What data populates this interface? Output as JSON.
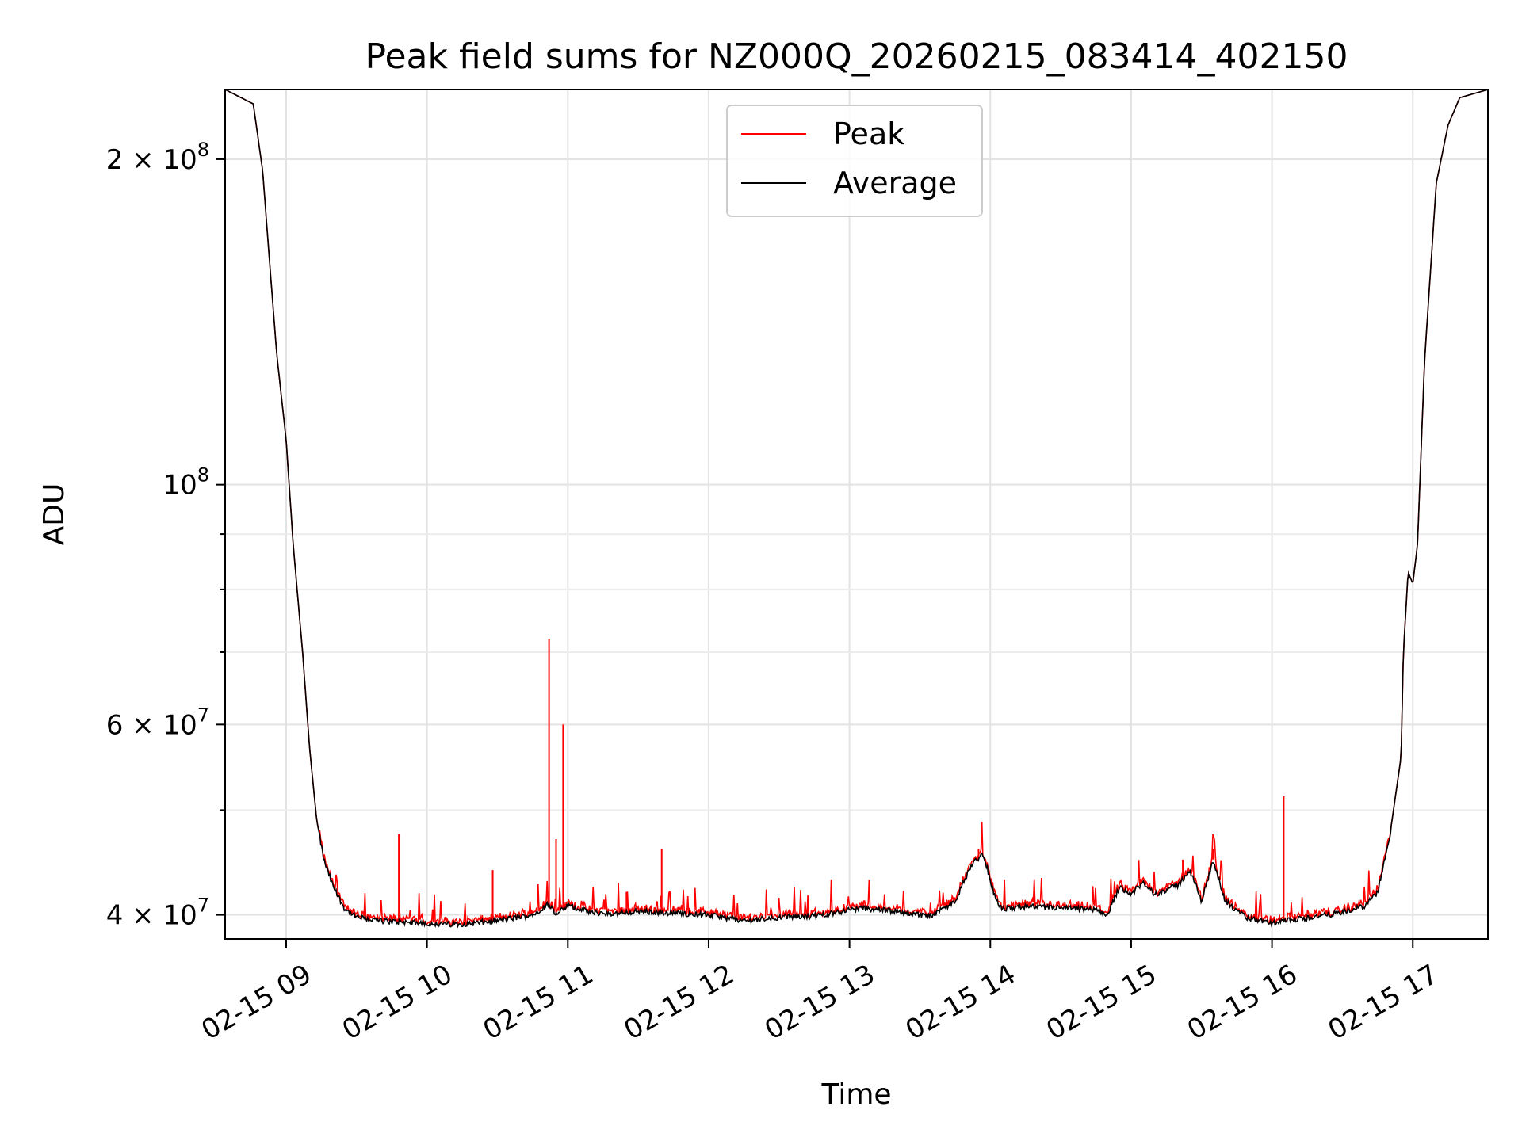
{
  "chart_data": {
    "type": "line",
    "title": "Peak field sums for NZ000Q_20260215_083414_402150",
    "xlabel": "Time",
    "ylabel": "ADU",
    "y_scale": "log",
    "grid": true,
    "legend_position": "upper-center",
    "x_range": [
      "2026-02-15 08:34",
      "2026-02-15 17:32"
    ],
    "ylim": [
      38000000,
      232000000
    ],
    "x_tick_labels": [
      "02-15 09",
      "02-15 10",
      "02-15 11",
      "02-15 12",
      "02-15 13",
      "02-15 14",
      "02-15 15",
      "02-15 16",
      "02-15 17"
    ],
    "y_tick_labels": [
      {
        "value": 40000000,
        "label": "4 × 10^7"
      },
      {
        "value": 60000000,
        "label": "6 × 10^7"
      },
      {
        "value": 100000000,
        "label": "10^8"
      },
      {
        "value": 200000000,
        "label": "2 × 10^8"
      }
    ],
    "y_minor_ticks": [
      50000000,
      70000000,
      80000000,
      90000000
    ],
    "series": [
      {
        "name": "Average",
        "color": "#000000",
        "x": [
          "2026-02-15 08:34",
          "2026-02-15 08:46",
          "2026-02-15 08:50",
          "2026-02-15 08:53",
          "2026-02-15 08:56",
          "2026-02-15 09:00",
          "2026-02-15 09:03",
          "2026-02-15 09:07",
          "2026-02-15 09:10",
          "2026-02-15 09:13",
          "2026-02-15 09:16",
          "2026-02-15 09:20",
          "2026-02-15 09:25",
          "2026-02-15 09:30",
          "2026-02-15 09:40",
          "2026-02-15 09:50",
          "2026-02-15 10:00",
          "2026-02-15 10:10",
          "2026-02-15 10:20",
          "2026-02-15 10:30",
          "2026-02-15 10:45",
          "2026-02-15 10:52",
          "2026-02-15 10:55",
          "2026-02-15 11:00",
          "2026-02-15 11:10",
          "2026-02-15 11:20",
          "2026-02-15 11:30",
          "2026-02-15 11:40",
          "2026-02-15 12:00",
          "2026-02-15 12:15",
          "2026-02-15 12:30",
          "2026-02-15 12:45",
          "2026-02-15 13:05",
          "2026-02-15 13:20",
          "2026-02-15 13:35",
          "2026-02-15 13:45",
          "2026-02-15 13:52",
          "2026-02-15 13:57",
          "2026-02-15 14:02",
          "2026-02-15 14:05",
          "2026-02-15 14:15",
          "2026-02-15 14:30",
          "2026-02-15 14:45",
          "2026-02-15 14:50",
          "2026-02-15 14:55",
          "2026-02-15 15:00",
          "2026-02-15 15:05",
          "2026-02-15 15:10",
          "2026-02-15 15:15",
          "2026-02-15 15:20",
          "2026-02-15 15:25",
          "2026-02-15 15:30",
          "2026-02-15 15:35",
          "2026-02-15 15:40",
          "2026-02-15 15:45",
          "2026-02-15 15:50",
          "2026-02-15 16:00",
          "2026-02-15 16:10",
          "2026-02-15 16:20",
          "2026-02-15 16:30",
          "2026-02-15 16:40",
          "2026-02-15 16:45",
          "2026-02-15 16:50",
          "2026-02-15 16:55",
          "2026-02-15 16:56",
          "2026-02-15 16:58",
          "2026-02-15 17:00",
          "2026-02-15 17:02",
          "2026-02-15 17:05",
          "2026-02-15 17:10",
          "2026-02-15 17:15",
          "2026-02-15 17:20",
          "2026-02-15 17:32"
        ],
        "y": [
          232000000,
          225000000,
          195000000,
          160000000,
          132000000,
          110000000,
          88000000,
          70000000,
          57000000,
          49000000,
          45000000,
          42500000,
          40500000,
          39800000,
          39500000,
          39400000,
          39300000,
          39200000,
          39300000,
          39500000,
          40000000,
          41000000,
          40000000,
          40800000,
          40200000,
          40100000,
          40300000,
          40200000,
          40000000,
          39500000,
          39800000,
          39900000,
          40600000,
          40300000,
          39900000,
          41200000,
          44500000,
          45600000,
          41500000,
          40500000,
          40700000,
          40600000,
          40400000,
          40000000,
          42500000,
          41800000,
          42800000,
          41800000,
          42200000,
          42600000,
          44000000,
          41200000,
          45000000,
          41200000,
          40300000,
          39700000,
          39300000,
          39600000,
          39900000,
          40200000,
          40800000,
          42000000,
          47000000,
          56000000,
          70000000,
          83000000,
          81000000,
          88000000,
          130000000,
          190000000,
          215000000,
          228000000,
          232000000
        ]
      },
      {
        "name": "Peak",
        "color": "#ff0000",
        "x": [
          "2026-02-15 09:48",
          "2026-02-15 10:28",
          "2026-02-15 10:52",
          "2026-02-15 10:55",
          "2026-02-15 10:58",
          "2026-02-15 11:25",
          "2026-02-15 11:40",
          "2026-02-15 13:55",
          "2026-02-15 15:22",
          "2026-02-15 15:35",
          "2026-02-15 16:05"
        ],
        "y": [
          47500000,
          44000000,
          72000000,
          47000000,
          60000000,
          42000000,
          46000000,
          46000000,
          45000000,
          46000000,
          51500000
        ]
      }
    ]
  }
}
